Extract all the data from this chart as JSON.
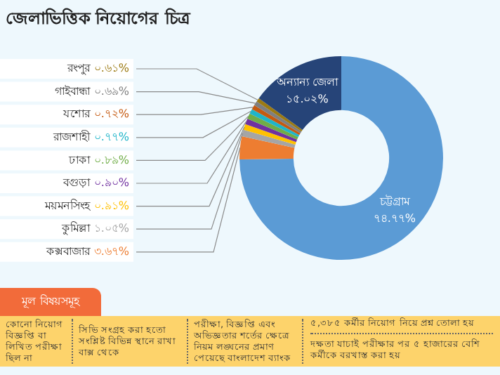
{
  "chart_data": {
    "type": "donut",
    "title": "জেলাভিত্তিক নিয়োগের চিত্র",
    "categories": [
      "চট্টগ্রাম",
      "কক্সবাজার",
      "কুমিল্লা",
      "ময়মনসিংহ",
      "বগুড়া",
      "ঢাকা",
      "রাজশাহী",
      "যশোর",
      "গাইবান্ধা",
      "রংপুর",
      "অন্যান্য জেলা"
    ],
    "values": [
      74.77,
      3.67,
      1.05,
      0.91,
      0.9,
      0.89,
      0.77,
      0.72,
      0.69,
      0.61,
      15.02
    ],
    "value_labels": [
      "৭৪.৭৭%",
      "৩.৬৭%",
      "১.০৫%",
      "০.৯১%",
      "০.৯০%",
      "০.৮৯%",
      "০.৭৭%",
      "০.৭২%",
      "০.৬৯%",
      "০.৬১%",
      "১৫.০২%"
    ],
    "colors": [
      "#5b9bd5",
      "#ed7d31",
      "#a5a5a5",
      "#ffc000",
      "#7030a0",
      "#70ad47",
      "#1fb5c9",
      "#c55a11",
      "#7f7f7f",
      "#9c7a12",
      "#264478"
    ],
    "annotations": [
      "মূল বিষয়সমূহ",
      "কোনো নিয়োগ বিজ্ঞপ্তি বা লিখিত পরীক্ষা ছিল না",
      "সিভি সংগ্রহ করা হতো সংশ্লিষ্ট বিভিন্ন স্থানে রাখা বাক্স থেকে",
      "পরীক্ষা, বিজ্ঞপ্তি এবং অভিজ্ঞতার শর্তের ক্ষেত্রে নিয়ম লঙ্ঘনের প্রমাণ পেয়েছে বাংলাদেশ ব্যাংক",
      "৫,৩৮৫ কর্মীর নিয়োগ নিয়ে প্রশ্ন তোলা হয়",
      "দক্ষতা যাচাই পরীক্ষার পর ৫ হাজারের বেশি কর্মীকে বরখাস্ত করা হয়"
    ]
  }
}
